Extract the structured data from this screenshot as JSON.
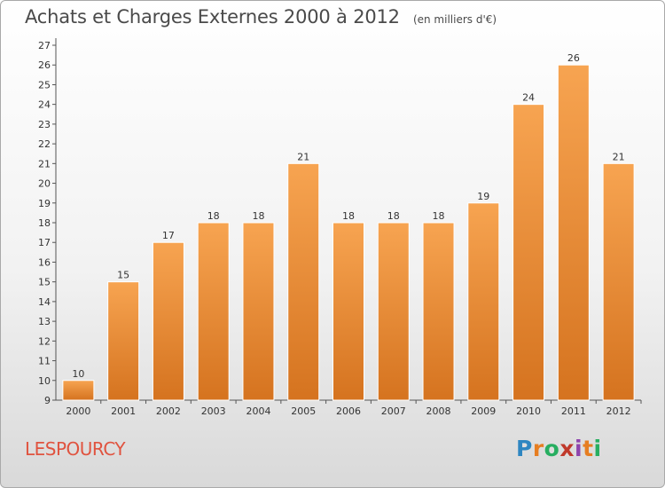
{
  "header": {
    "title": "Achats et Charges Externes 2000 à 2012",
    "subtitle": "(en milliers d'€)"
  },
  "footer": {
    "commune": "LESPOURCY",
    "logo_text": "Proxiti"
  },
  "colors": {
    "bar_top": "#f7a451",
    "bar_bottom": "#d5731f",
    "commune": "#e0533f"
  },
  "chart_data": {
    "type": "bar",
    "title": "Achats et Charges Externes 2000 à 2012",
    "subtitle": "(en milliers d'€)",
    "categories": [
      "2000",
      "2001",
      "2002",
      "2003",
      "2004",
      "2005",
      "2006",
      "2007",
      "2008",
      "2009",
      "2010",
      "2011",
      "2012"
    ],
    "values": [
      10,
      15,
      17,
      18,
      18,
      21,
      18,
      18,
      18,
      19,
      24,
      26,
      21
    ],
    "xlabel": "",
    "ylabel": "",
    "ylim": [
      9,
      27
    ],
    "yticks": [
      9,
      10,
      11,
      12,
      13,
      14,
      15,
      16,
      17,
      18,
      19,
      20,
      21,
      22,
      23,
      24,
      25,
      26,
      27
    ],
    "grid": false,
    "legend": "none"
  }
}
